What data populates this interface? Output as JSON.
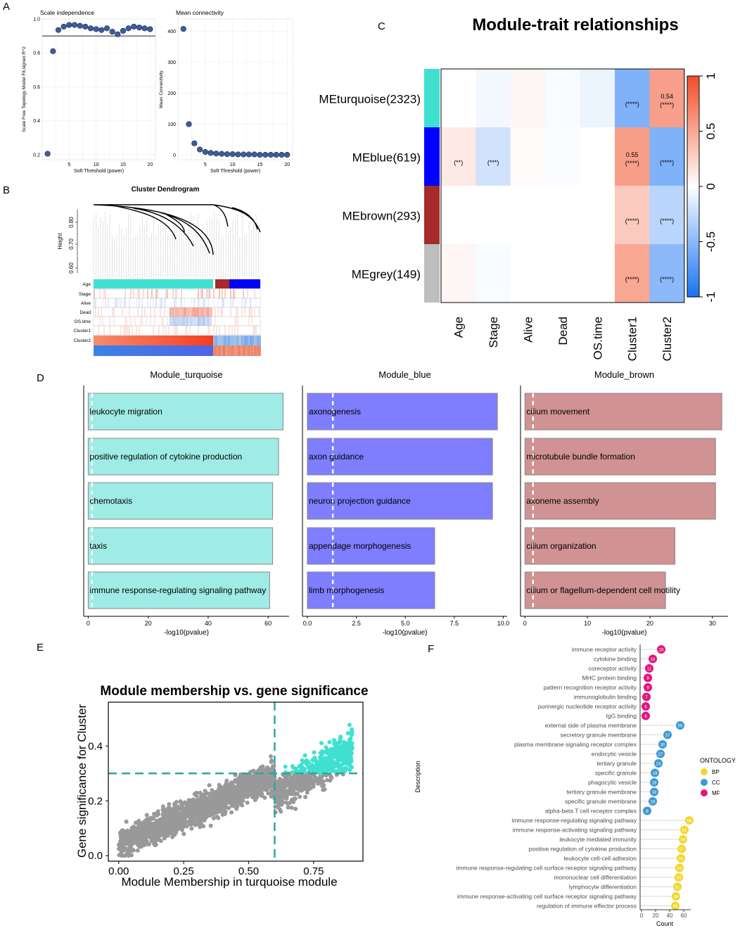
{
  "panel_labels": [
    "A",
    "B",
    "C",
    "D",
    "E",
    "F"
  ],
  "chart_data": [
    {
      "panel": "A1",
      "type": "scatter",
      "title": "Scale independence",
      "xlabel": "Soft Threshold (power)",
      "ylabel": "Scale Free Topology Model Fit,signed R^2",
      "xlim": [
        0,
        21
      ],
      "ylim": [
        0.17,
        1.0
      ],
      "xticks": [
        5,
        10,
        15,
        20
      ],
      "yticks": [
        0.2,
        0.4,
        0.6,
        0.8,
        1.0
      ],
      "yticklabels": [
        "0.2",
        "0.4",
        "0.6",
        "0.8",
        "1.0"
      ],
      "hline": 0.9,
      "x": [
        1,
        2,
        3,
        4,
        5,
        6,
        7,
        8,
        9,
        10,
        11,
        12,
        13,
        14,
        15,
        16,
        17,
        18,
        19,
        20
      ],
      "y": [
        0.205,
        0.81,
        0.935,
        0.955,
        0.965,
        0.965,
        0.96,
        0.955,
        0.945,
        0.94,
        0.935,
        0.945,
        0.925,
        0.91,
        0.93,
        0.945,
        0.955,
        0.95,
        0.945,
        0.94
      ]
    },
    {
      "panel": "A2",
      "type": "scatter",
      "title": "Mean connectivity",
      "xlabel": "Soft Threshold (power)",
      "ylabel": "Mean Connectivity",
      "xlim": [
        0,
        21
      ],
      "ylim": [
        -15,
        440
      ],
      "xticks": [
        5,
        10,
        15,
        20
      ],
      "yticks": [
        0,
        100,
        200,
        300,
        400
      ],
      "x": [
        1,
        2,
        3,
        4,
        5,
        6,
        7,
        8,
        9,
        10,
        11,
        12,
        13,
        14,
        15,
        16,
        17,
        18,
        19,
        20
      ],
      "y": [
        408,
        100,
        38,
        18,
        10,
        7,
        5,
        4,
        3,
        3,
        2,
        2,
        2,
        2,
        1,
        1,
        1,
        1,
        1,
        1
      ]
    },
    {
      "panel": "B",
      "type": "dendrogram",
      "title": "Cluster Dendrogram",
      "ylabel": "Height",
      "yticks": [
        "0.80",
        "0.70",
        "0.60"
      ],
      "rows": [
        "Age",
        "Stage",
        "Alive",
        "Dead",
        "OS.time",
        "Cluster1",
        "Cluster2"
      ]
    },
    {
      "panel": "C",
      "type": "heatmap",
      "title": "Module-trait relationships",
      "rows": [
        "MEturquoise(2323)",
        "MEblue(619)",
        "MEbrown(293)",
        "MEgrey(149)"
      ],
      "row_colors": [
        "#40E0D0",
        "#0000FF",
        "#A52A2A",
        "#BEBEBE"
      ],
      "columns": [
        "Age",
        "Stage",
        "Alive",
        "Dead",
        "OS.time",
        "Cluster1",
        "Cluster2"
      ],
      "values": [
        [
          0.0,
          -0.05,
          0.05,
          -0.03,
          -0.08,
          -0.55,
          0.54
        ],
        [
          0.12,
          -0.2,
          0.02,
          -0.02,
          0.0,
          0.55,
          -0.55
        ],
        [
          0.0,
          0.0,
          0.0,
          0.0,
          0.0,
          0.3,
          -0.3
        ],
        [
          0.05,
          -0.03,
          0.0,
          0.0,
          0.0,
          0.5,
          -0.5
        ]
      ],
      "cell_text": [
        [
          "",
          "",
          "",
          "",
          "",
          "(****)",
          "0.54\n(****)"
        ],
        [
          "(**)",
          "(***)",
          "",
          "",
          "",
          "0.55\n(****)",
          "(****)"
        ],
        [
          "",
          "",
          "",
          "",
          "",
          "(****)",
          "(****)"
        ],
        [
          "",
          "",
          "",
          "",
          "",
          "(****)",
          "(****)"
        ]
      ],
      "scale_range": [
        -1,
        1
      ],
      "scale_ticks": [
        "-1",
        "-0.5",
        "0",
        "0.5",
        "1"
      ]
    },
    {
      "panel": "D1",
      "type": "bar",
      "orientation": "horizontal",
      "title": "Module_turquoise",
      "color": "#9FEBE5",
      "categories": [
        "leukocyte migration",
        "positive regulation of cytokine production",
        "chemotaxis",
        "taxis",
        "immune response-regulating signaling pathway"
      ],
      "values": [
        65,
        63.5,
        61.5,
        61.5,
        60.5
      ],
      "xlim": [
        -1.5,
        67
      ],
      "xticks": [
        0,
        20,
        40,
        60
      ],
      "dashed_line": 1.3,
      "xlabel": "-log10(pvalue)"
    },
    {
      "panel": "D2",
      "type": "bar",
      "orientation": "horizontal",
      "title": "Module_blue",
      "color": "#7E7EFF",
      "categories": [
        "axonogenesis",
        "axon guidance",
        "neuron projection guidance",
        "appendage morphogenesis",
        "limb morphogenesis"
      ],
      "values": [
        9.7,
        9.45,
        9.45,
        6.5,
        6.5
      ],
      "xlim": [
        -0.25,
        10.2
      ],
      "xticks": [
        0.0,
        2.5,
        5.0,
        7.5,
        10.0
      ],
      "xticklabels": [
        "0.0",
        "2.5",
        "5.0",
        "7.5",
        "10.0"
      ],
      "dashed_line": 1.3,
      "xlabel": "-log10(pvalue)"
    },
    {
      "panel": "D3",
      "type": "bar",
      "orientation": "horizontal",
      "title": "Module_brown",
      "color": "#D09292",
      "categories": [
        "cilium movement",
        "microtubule bundle formation",
        "axoneme assembly",
        "cilium organization",
        "cilium or flagellum-dependent cell motility"
      ],
      "values": [
        31.5,
        30.5,
        30.5,
        24,
        22.5
      ],
      "xlim": [
        -0.7,
        32.5
      ],
      "xticks": [
        0,
        10,
        20,
        30
      ],
      "dashed_line": 1.3,
      "xlabel": "-log10(pvalue)"
    },
    {
      "panel": "E",
      "type": "scatter",
      "title": "Module membership vs. gene significance",
      "xlabel": "Module Membership in turquoise module",
      "ylabel": "Gene significance for Cluster",
      "xlim": [
        -0.04,
        0.94
      ],
      "ylim": [
        -0.02,
        0.56
      ],
      "xticks": [
        0.0,
        0.25,
        0.5,
        0.75
      ],
      "xticklabels": [
        "0.00",
        "0.25",
        "0.50",
        "0.75"
      ],
      "yticks": [
        0.0,
        0.2,
        0.4
      ],
      "yticklabels": [
        "0.0",
        "0.2",
        "0.4"
      ],
      "vline": 0.6,
      "hline": 0.3,
      "n_points": 2323,
      "point_colors": {
        "other": "#999999",
        "highlight": "#40E0D0"
      }
    },
    {
      "panel": "F",
      "type": "dotplot",
      "ylabel": "Description",
      "xlabel": "Count",
      "xlim": [
        -2,
        70
      ],
      "xticks": [
        0,
        20,
        40,
        60
      ],
      "legend_title": "ONTOLOGY",
      "legend": [
        {
          "name": "BP",
          "color": "#F2D62E"
        },
        {
          "name": "CC",
          "color": "#3E98D3"
        },
        {
          "name": "MF",
          "color": "#E5147F"
        }
      ],
      "terms": [
        {
          "label": "immune receptor activity",
          "count": 28,
          "ont": "MF"
        },
        {
          "label": "cytokine binding",
          "count": 16,
          "ont": "MF"
        },
        {
          "label": "coreceptor activity",
          "count": 11,
          "ont": "MF"
        },
        {
          "label": "MHC protein binding",
          "count": 9,
          "ont": "MF"
        },
        {
          "label": "pattern recognition receptor activity",
          "count": 9,
          "ont": "MF"
        },
        {
          "label": "immunoglobulin binding",
          "count": 7,
          "ont": "MF"
        },
        {
          "label": "purinergic nucleotide receptor activity",
          "count": 6,
          "ont": "MF"
        },
        {
          "label": "IgG binding",
          "count": 6,
          "ont": "MF"
        },
        {
          "label": "external side of plasma membrane",
          "count": 55,
          "ont": "CC"
        },
        {
          "label": "secretory granule membrane",
          "count": 37,
          "ont": "CC"
        },
        {
          "label": "plasma membrane signaling receptor complex",
          "count": 30,
          "ont": "CC"
        },
        {
          "label": "endocytic vesicle",
          "count": 27,
          "ont": "CC"
        },
        {
          "label": "tertiary granule",
          "count": 24,
          "ont": "CC"
        },
        {
          "label": "specific granule",
          "count": 19,
          "ont": "CC"
        },
        {
          "label": "phagocytic vesicle",
          "count": 18,
          "ont": "CC"
        },
        {
          "label": "tertiary granule membrane",
          "count": 18,
          "ont": "CC"
        },
        {
          "label": "specific granule membrane",
          "count": 16,
          "ont": "CC"
        },
        {
          "label": "alpha-beta T cell receptor complex",
          "count": 8,
          "ont": "CC"
        },
        {
          "label": "immune response-regulating signaling pathway",
          "count": 68,
          "ont": "BP"
        },
        {
          "label": "immune response-activating signaling pathway",
          "count": 61,
          "ont": "BP"
        },
        {
          "label": "leukocyte mediated immunity",
          "count": 59,
          "ont": "BP"
        },
        {
          "label": "positive regulation of cytokine production",
          "count": 57,
          "ont": "BP"
        },
        {
          "label": "leukocyte cell-cell adhesion",
          "count": 56,
          "ont": "BP"
        },
        {
          "label": "immune response-regulating cell surface receptor signaling pathway",
          "count": 54,
          "ont": "BP"
        },
        {
          "label": "mononuclear cell differentiation",
          "count": 53,
          "ont": "BP"
        },
        {
          "label": "lymphocyte differentiation",
          "count": 51,
          "ont": "BP"
        },
        {
          "label": "immune response-activating cell surface receptor signaling pathway",
          "count": 49,
          "ont": "BP"
        },
        {
          "label": "regulation of immune effector process",
          "count": 48,
          "ont": "BP"
        }
      ]
    }
  ]
}
